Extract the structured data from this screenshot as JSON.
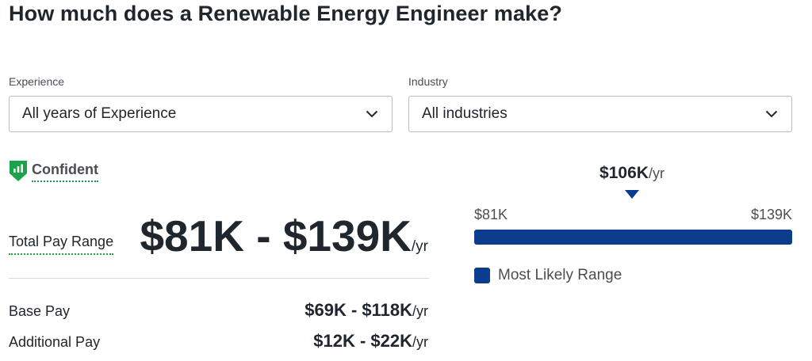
{
  "page": {
    "title": "How much does a Renewable Energy Engineer make?"
  },
  "filters": {
    "experience": {
      "label": "Experience",
      "value": "All years of Experience",
      "icon": "chevron-down-icon"
    },
    "industry": {
      "label": "Industry",
      "value": "All industries",
      "icon": "chevron-down-icon"
    }
  },
  "confidence": {
    "label": "Confident",
    "icon": "confidence-shield-icon",
    "color": "#1aa34a"
  },
  "pay": {
    "total_label": "Total Pay Range",
    "total_range": "$81K - $139K",
    "unit": "/yr",
    "base_label": "Base Pay",
    "base_range": "$69K - $118K",
    "additional_label": "Additional Pay",
    "additional_range": "$12K - $22K"
  },
  "range_chart": {
    "median": "$106K",
    "unit": "/yr",
    "min_label": "$81K",
    "max_label": "$139K",
    "legend": "Most Likely Range",
    "bar_color": "#0b3d8c"
  }
}
